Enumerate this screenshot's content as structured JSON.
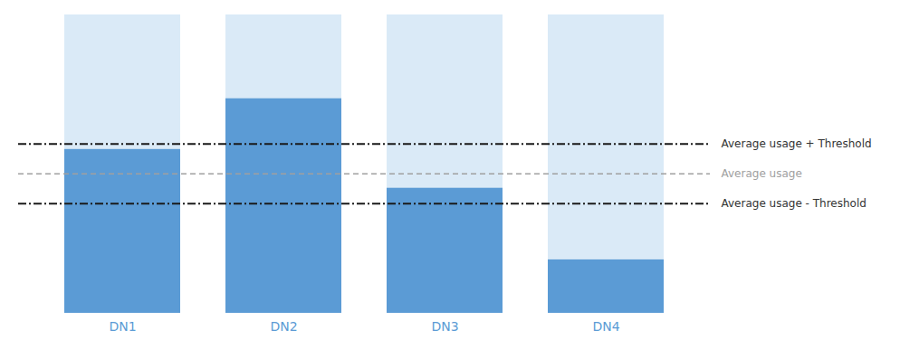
{
  "chart_data": {
    "type": "bar",
    "stacked": true,
    "categories": [
      "DN1",
      "DN2",
      "DN3",
      "DN4"
    ],
    "series": [
      {
        "color": "#5B9BD5",
        "values": [
          55,
          72,
          42,
          18
        ]
      },
      {
        "color": "#DAEAF7",
        "values": [
          45,
          28,
          58,
          82
        ]
      }
    ],
    "ylim": [
      0,
      100
    ],
    "tick_labels": "x",
    "label_color": "#5B9BD5",
    "grid": false,
    "reference_lines": [
      {
        "y": 56.75,
        "label": "Average usage + Threshold",
        "color": "#1a1a1a",
        "line_style": "dashdot",
        "label_color": "#333333"
      },
      {
        "y": 46.75,
        "label": "Average usage",
        "color": "#A0A0A0",
        "line_style": "dashed",
        "label_color": "#A0A0A0"
      },
      {
        "y": 36.75,
        "label": "Average usage - Threshold",
        "color": "#1a1a1a",
        "line_style": "dashdot",
        "label_color": "#333333"
      }
    ]
  }
}
